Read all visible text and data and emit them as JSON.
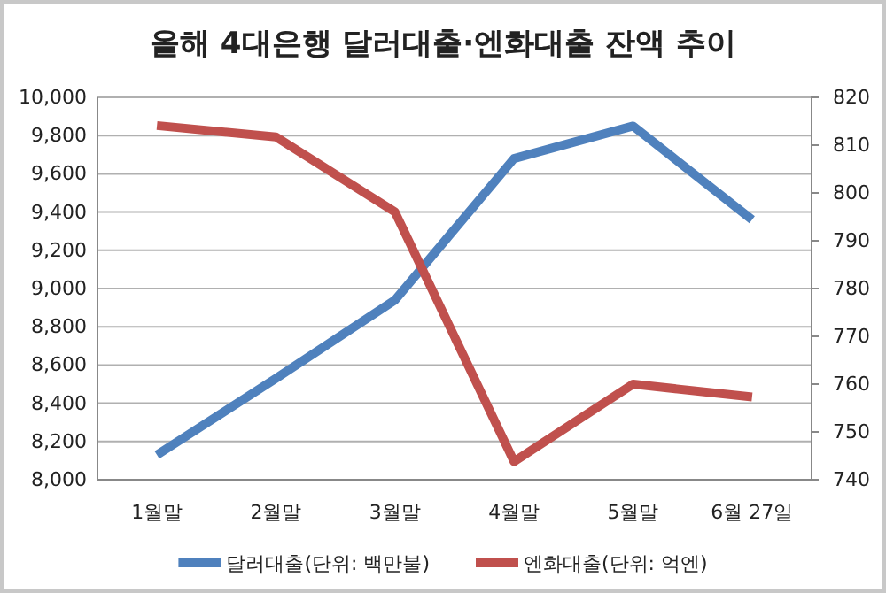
{
  "chart_data": {
    "type": "line",
    "title": "올해 4대은행 달러대출·엔화대출 잔액 추이",
    "categories": [
      "1월말",
      "2월말",
      "3월말",
      "4월말",
      "5월말",
      "6월 27일"
    ],
    "series": [
      {
        "name": "달러대출(단위: 백만불)",
        "color": "#4f81bd",
        "values": [
          8130,
          8530,
          8940,
          9680,
          9850,
          9360
        ]
      },
      {
        "name": "엔화대출(단위: 억엔)",
        "color": "#c0504d",
        "axis": "y2",
        "values": [
          814.1,
          811.7,
          796,
          743.8,
          760,
          757.3
        ]
      }
    ],
    "ylim": [
      8000,
      10000
    ],
    "yticks": [
      {
        "value": 8000,
        "label": "8,000"
      },
      {
        "value": 8200,
        "label": "8,200"
      },
      {
        "value": 8400,
        "label": "8,400"
      },
      {
        "value": 8600,
        "label": "8,600"
      },
      {
        "value": 8800,
        "label": "8,800"
      },
      {
        "value": 9000,
        "label": "9,000"
      },
      {
        "value": 9200,
        "label": "9,200"
      },
      {
        "value": 9400,
        "label": "9,400"
      },
      {
        "value": 9600,
        "label": "9,600"
      },
      {
        "value": 9800,
        "label": "9,800"
      },
      {
        "value": 10000,
        "label": "10,000"
      }
    ],
    "y2lim": [
      740,
      820
    ],
    "y2ticks": [
      740,
      750,
      760,
      770,
      780,
      790,
      800,
      810,
      820
    ],
    "grid": "y",
    "legend": "bottom",
    "marker": "none",
    "line_style": "solid"
  }
}
